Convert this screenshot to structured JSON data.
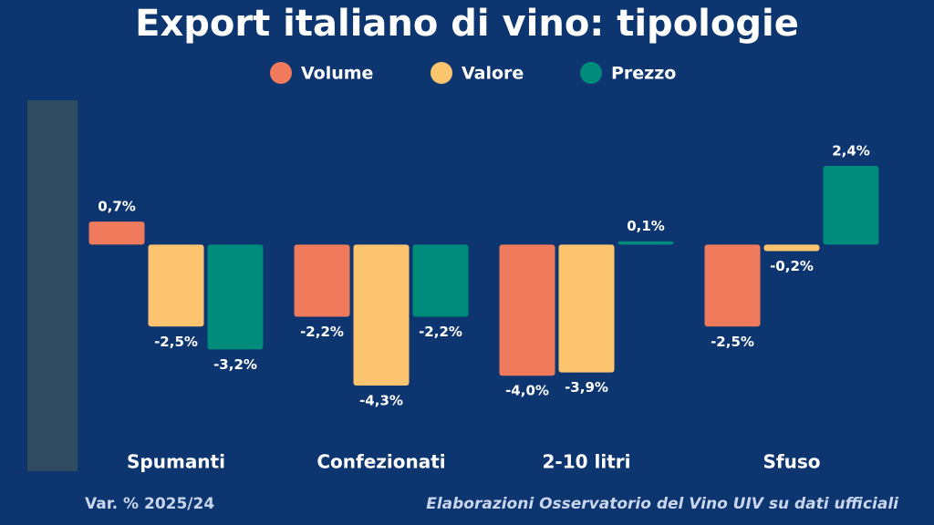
{
  "chart_data": {
    "type": "bar",
    "title": "Export italiano di vino: tipologie",
    "subtitle": "Var. % 2025/24",
    "source": "Elaborazioni Osservatorio del Vino UIV su dati ufficiali",
    "categories": [
      "Spumanti",
      "Confezionati",
      "2-10 litri",
      "Sfuso"
    ],
    "series": [
      {
        "name": "Volume",
        "color": "#f07a5c",
        "values": [
          0.7,
          -2.2,
          -4.0,
          -2.5
        ],
        "value_labels": [
          "0,7%",
          "-2,2%",
          "-4,0%",
          "-2,5%"
        ]
      },
      {
        "name": "Valore",
        "color": "#fcc46f",
        "values": [
          -2.5,
          -4.3,
          -3.9,
          -0.2
        ],
        "value_labels": [
          "-2,5%",
          "-4,3%",
          "-3,9%",
          "-0,2%"
        ]
      },
      {
        "name": "Prezzo",
        "color": "#008c7a",
        "values": [
          -3.2,
          -2.2,
          0.1,
          2.4
        ],
        "value_labels": [
          "-3,2%",
          "-2,2%",
          "0,1%",
          "2,4%"
        ]
      }
    ],
    "legend": "top"
  }
}
